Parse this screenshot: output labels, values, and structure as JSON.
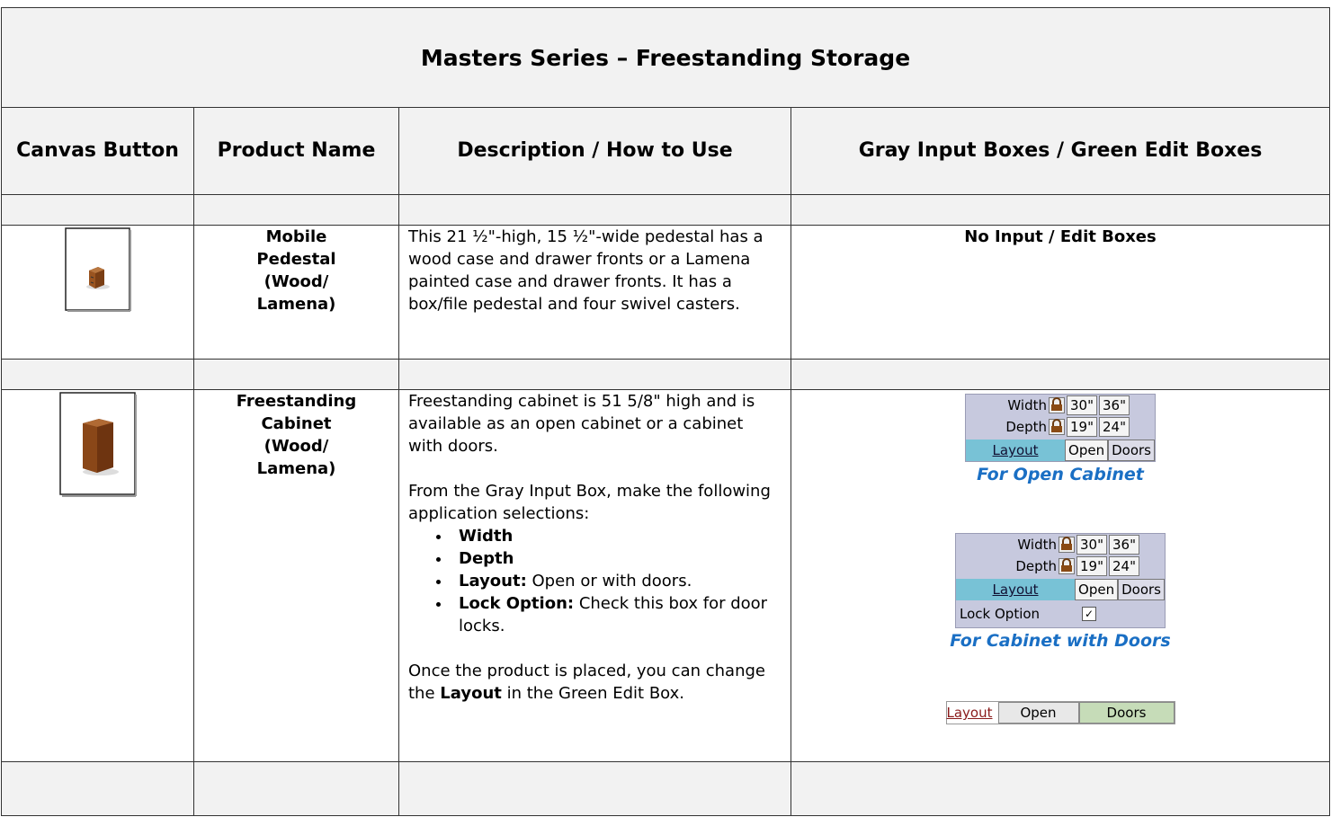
{
  "title": "Masters Series – Freestanding Storage",
  "headers": [
    "Canvas Button",
    "Product Name",
    "Description / How to Use",
    "Gray Input Boxes / Green Edit Boxes"
  ],
  "rows": [
    {
      "product": [
        "Mobile",
        "Pedestal",
        "(Wood/",
        "Lamena)"
      ],
      "description": "This 21 ½\"-high, 15 ½\"-wide pedestal has a wood case and drawer fronts or a Lamena painted case and drawer fronts. It has a box/file pedestal and four swivel casters.",
      "inputs": "No Input / Edit Boxes"
    },
    {
      "product": [
        "Freestanding",
        "Cabinet",
        "(Wood/",
        "Lamena)"
      ],
      "description": {
        "intro": "Freestanding cabinet is 51 5/8\" high and is available as an open cabinet or a cabinet with doors.",
        "lead": "From the Gray Input Box, make the following application selections:",
        "bullets": [
          {
            "label": "Width"
          },
          {
            "label": "Depth"
          },
          {
            "label": "Layout:",
            "text": "Open or with doors."
          },
          {
            "label": "Lock Option:",
            "text": "Check this box for door locks."
          }
        ],
        "closing": [
          "Once the product is placed, you can change the",
          "Layout",
          "in the Green Edit Box."
        ]
      },
      "inputs": {
        "open_box": {
          "width_label": "Width",
          "width_options": [
            "30\"",
            "36\""
          ],
          "depth_label": "Depth",
          "depth_options": [
            "19\"",
            "24\""
          ],
          "layout_label": "Layout",
          "layout_options": [
            "Open",
            "Doors"
          ]
        },
        "open_caption": "For Open Cabinet",
        "doors_box": {
          "width_label": "Width",
          "width_options": [
            "30\"",
            "36\""
          ],
          "depth_label": "Depth",
          "depth_options": [
            "19\"",
            "24\""
          ],
          "layout_label": "Layout",
          "layout_options": [
            "Open",
            "Doors"
          ],
          "lock_label": "Lock Option"
        },
        "doors_caption": "For Cabinet with Doors",
        "edit_box": {
          "layout_label": "Layout",
          "layout_options": [
            "Open",
            "Doors"
          ]
        }
      }
    }
  ]
}
